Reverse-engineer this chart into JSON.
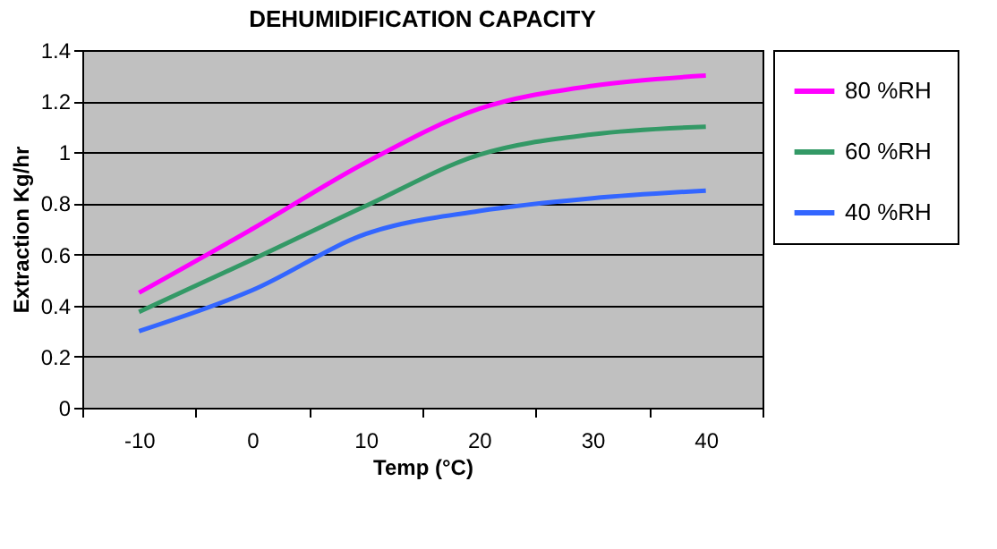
{
  "chart_data": {
    "type": "line",
    "title": "DEHUMIDIFICATION CAPACITY",
    "xlabel": "Temp (°C)",
    "ylabel": "Extraction Kg/hr",
    "categories": [
      "-10",
      "0",
      "10",
      "20",
      "30",
      "40"
    ],
    "series": [
      {
        "name": "80  %RH",
        "color": "#ff00ff",
        "values": [
          0.45,
          0.7,
          0.96,
          1.17,
          1.26,
          1.3
        ]
      },
      {
        "name": "60  %RH",
        "color": "#339966",
        "values": [
          0.375,
          0.58,
          0.79,
          0.99,
          1.07,
          1.1
        ]
      },
      {
        "name": "40  %RH",
        "color": "#3366ff",
        "values": [
          0.3,
          0.46,
          0.68,
          0.77,
          0.82,
          0.85
        ]
      }
    ],
    "ylim": [
      0,
      1.4
    ],
    "yticks": [
      0,
      0.2,
      0.4,
      0.6,
      0.8,
      1,
      1.2,
      1.4
    ],
    "grid": "y",
    "legend": "right",
    "marker": "none",
    "line_style": "solid"
  }
}
